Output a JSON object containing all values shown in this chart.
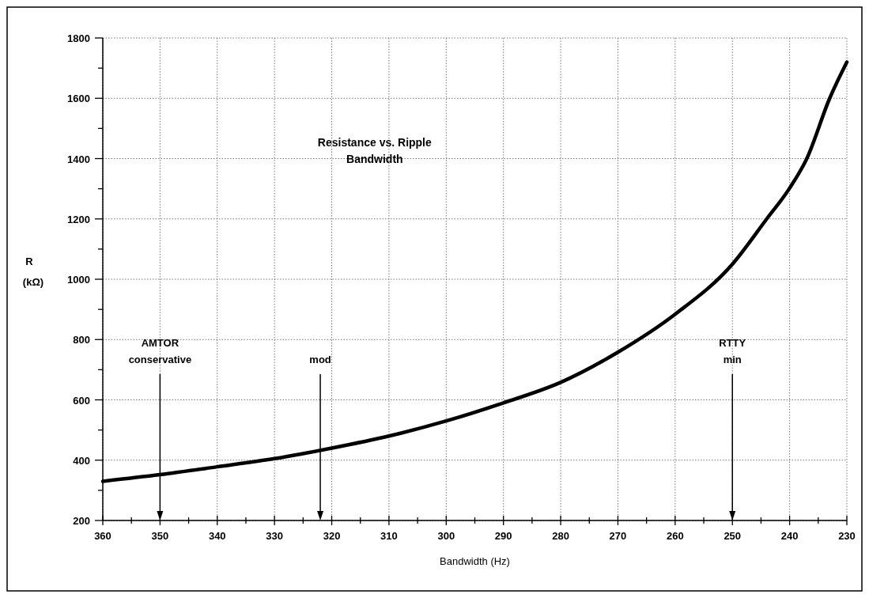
{
  "chart_data": {
    "type": "line",
    "title": "Resistance vs. Ripple Bandwidth",
    "xlabel": "Bandwidth (Hz)",
    "ylabel": "R (kΩ)",
    "x": [
      360,
      350,
      340,
      330,
      320,
      310,
      300,
      290,
      280,
      270,
      260,
      250,
      244,
      240,
      237,
      233,
      230
    ],
    "series": [
      {
        "color": "#000000",
        "values": [
          330,
          352,
          378,
          405,
          440,
          480,
          530,
          590,
          658,
          758,
          884,
          1050,
          1200,
          1302,
          1400,
          1600,
          1720
        ]
      }
    ],
    "xlim": [
      360,
      230
    ],
    "xticks": [
      360,
      {
        "value": 355,
        "label": null
      },
      350,
      {
        "value": 345,
        "label": null
      },
      340,
      {
        "value": 335,
        "label": null
      },
      330,
      {
        "value": 325,
        "label": null
      },
      320,
      {
        "value": 315,
        "label": null
      },
      310,
      {
        "value": 305,
        "label": null
      },
      300,
      {
        "value": 295,
        "label": null
      },
      290,
      {
        "value": 285,
        "label": null
      },
      280,
      {
        "value": 275,
        "label": null
      },
      270,
      {
        "value": 265,
        "label": null
      },
      260,
      {
        "value": 255,
        "label": null
      },
      250,
      {
        "value": 245,
        "label": null
      },
      240,
      {
        "value": 235,
        "label": null
      },
      230
    ],
    "ylim": [
      200,
      1800
    ],
    "yticks": [
      200,
      {
        "value": 300,
        "label": null
      },
      400,
      {
        "value": 500,
        "label": null
      },
      600,
      {
        "value": 700,
        "label": null
      },
      800,
      {
        "value": 900,
        "label": null
      },
      1000,
      {
        "value": 1100,
        "label": null
      },
      1200,
      {
        "value": 1300,
        "label": null
      },
      1400,
      {
        "value": 1500,
        "label": null
      },
      1600,
      {
        "value": 1700,
        "label": null
      },
      1800
    ],
    "grid": true,
    "marker": "none",
    "line_style": "solid",
    "ref_lines": [
      {
        "axis": "x",
        "value": 350,
        "label": "AMTOR conservative"
      },
      {
        "axis": "x",
        "value": 322,
        "label": "mod"
      },
      {
        "axis": "x",
        "value": 250,
        "label": "RTTY min"
      }
    ]
  }
}
